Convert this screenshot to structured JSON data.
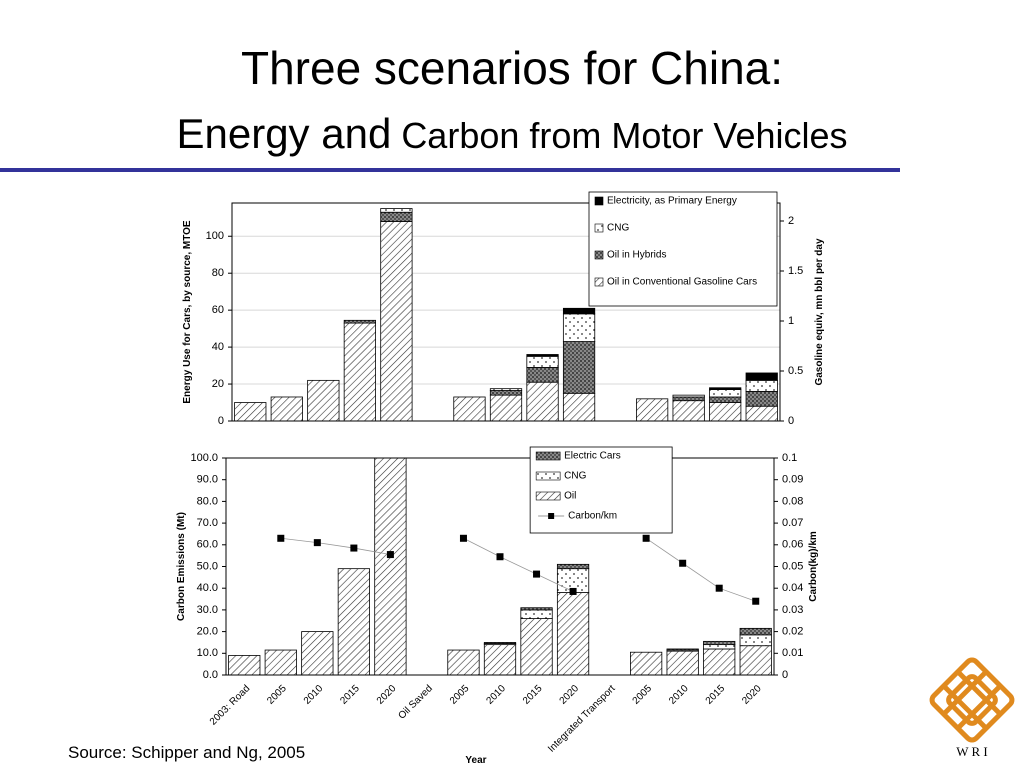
{
  "title": {
    "line1": "Three scenarios for China:",
    "line2a": "Energy and",
    "line2b": "Carbon from Motor Vehicles"
  },
  "source": "Source:  Schipper and Ng, 2005",
  "logo_text": "W R I",
  "chart_data": [
    {
      "type": "bar",
      "ylabel": "Energy  Use for Cars, by source, MTOE",
      "y2label": "Gasoline equiv, mn bbl per day",
      "ylim": [
        0,
        118
      ],
      "yticks": [
        0,
        20,
        40,
        60,
        80,
        100
      ],
      "y2lim": [
        0,
        2.18
      ],
      "y2ticks": [
        0,
        0.5,
        1,
        1.5,
        2
      ],
      "grid": true,
      "legend": "upper right",
      "series": [
        {
          "name": "Oil in Conventional Gasoline Cars",
          "color": "#555555",
          "pattern": "hatch",
          "values": [
            10,
            13,
            22,
            53,
            108,
            null,
            13,
            14,
            21,
            15,
            null,
            12,
            11,
            10,
            8
          ]
        },
        {
          "name": "Oil in Hybrids",
          "color": "#777777",
          "pattern": "cross",
          "values": [
            0,
            0,
            0,
            1.5,
            5,
            null,
            0,
            2.5,
            8,
            28,
            null,
            0,
            2,
            3,
            8
          ]
        },
        {
          "name": "CNG",
          "color": "#ffffff",
          "pattern": "dots",
          "values": [
            0,
            0,
            0,
            0,
            2,
            null,
            0,
            1,
            6,
            15,
            null,
            0,
            1,
            4,
            6
          ]
        },
        {
          "name": "Electricity, as Primary Energy",
          "color": "#000000",
          "pattern": "solid",
          "values": [
            0,
            0,
            0,
            0,
            0,
            null,
            0,
            0,
            1,
            3,
            null,
            0,
            0,
            1,
            4
          ]
        }
      ]
    },
    {
      "type": "bar",
      "xlabel": "Year",
      "ylabel": "Carbon Emissions (Mt)",
      "y2label": "Carbon(kg)/km",
      "categories": [
        "2003: Road",
        "2005",
        "2010",
        "2015",
        "2020",
        "Oil Saved",
        "2005",
        "2010",
        "2015",
        "2020",
        "Integrated Transport",
        "2005",
        "2010",
        "2015",
        "2020"
      ],
      "ylim": [
        0,
        100
      ],
      "yticks": [
        {
          "value": 0,
          "label": "0.0"
        },
        {
          "value": 10,
          "label": "10.0"
        },
        {
          "value": 20,
          "label": "20.0"
        },
        {
          "value": 30,
          "label": "30.0"
        },
        {
          "value": 40,
          "label": "40.0"
        },
        {
          "value": 50,
          "label": "50.0"
        },
        {
          "value": 60,
          "label": "60.0"
        },
        {
          "value": 70,
          "label": "70.0"
        },
        {
          "value": 80,
          "label": "80.0"
        },
        {
          "value": 90,
          "label": "90.0"
        },
        {
          "value": 100,
          "label": "100.0"
        }
      ],
      "y2lim": [
        0,
        0.1
      ],
      "y2ticks": [
        0,
        0.01,
        0.02,
        0.03,
        0.04,
        0.05,
        0.06,
        0.07,
        0.08,
        0.09,
        0.1
      ],
      "grid": false,
      "legend": "upper center",
      "series": [
        {
          "name": "Oil",
          "color": "#555555",
          "pattern": "hatch",
          "values": [
            9,
            11.5,
            20,
            49,
            105,
            null,
            11.5,
            14,
            26,
            38,
            null,
            10.5,
            11,
            12,
            13.5
          ]
        },
        {
          "name": "CNG",
          "color": "#ffffff",
          "pattern": "dots",
          "values": [
            0,
            0,
            0,
            0,
            0,
            null,
            0,
            0.5,
            4,
            11,
            null,
            0,
            0.5,
            2,
            5
          ]
        },
        {
          "name": "Electric Cars",
          "color": "#777777",
          "pattern": "cross",
          "values": [
            0,
            0,
            0,
            0,
            0,
            null,
            0,
            0.5,
            1,
            2,
            null,
            0,
            0.5,
            1.5,
            3
          ]
        },
        {
          "name": "Carbon/km",
          "type": "line",
          "axis": "y2",
          "color": "#000000",
          "values": [
            null,
            0.063,
            0.061,
            0.0585,
            0.0555,
            null,
            0.063,
            0.0545,
            0.0465,
            0.0385,
            null,
            0.063,
            0.0515,
            0.04,
            0.034
          ]
        }
      ]
    }
  ]
}
